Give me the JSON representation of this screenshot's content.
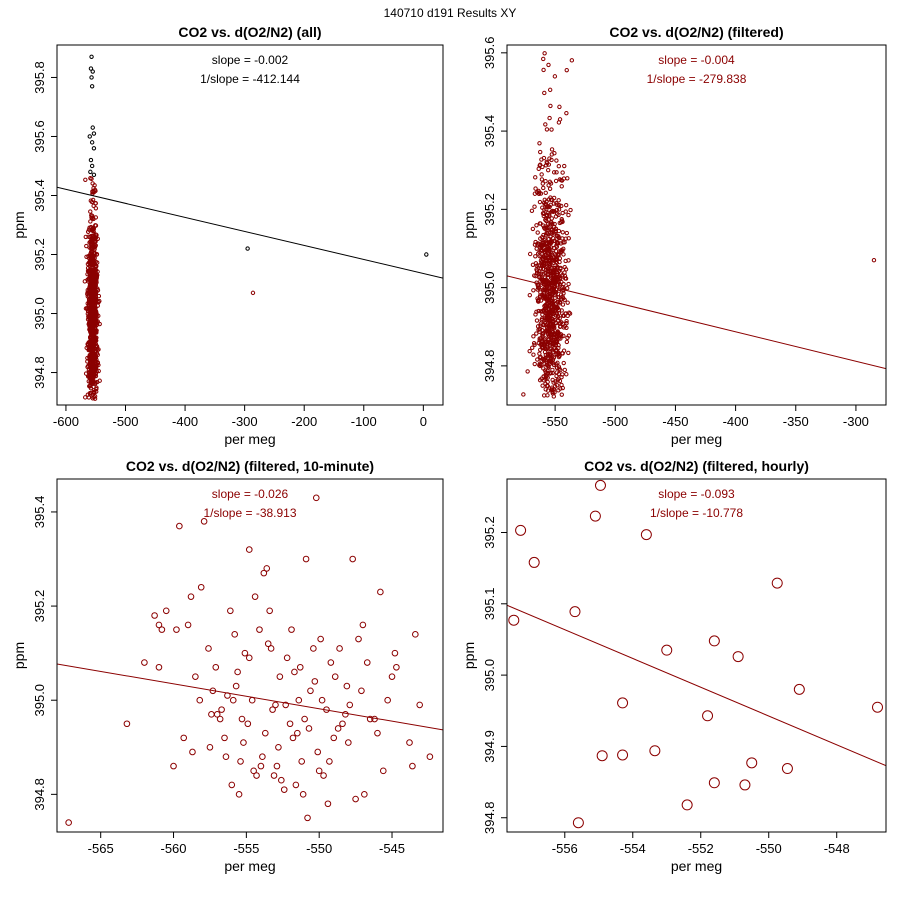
{
  "figure": {
    "suptitle": "140710   d191   Results XY"
  },
  "colors": {
    "points": "#8B0000",
    "outlier_points": "#000000",
    "fit_line_black": "#000000",
    "fit_line_red": "#8B0000",
    "frame": "#000000"
  },
  "chart_data": [
    {
      "type": "scatter",
      "title": "CO2 vs. d(O2/N2) (all)",
      "xlabel": "per meg",
      "ylabel": "ppm",
      "xlim": [
        -615,
        33
      ],
      "ylim": [
        394.69,
        395.91
      ],
      "xticks": [
        -600,
        -500,
        -400,
        -300,
        -200,
        -100,
        0
      ],
      "yticks": [
        394.8,
        395.0,
        395.2,
        395.4,
        395.6,
        395.8
      ],
      "slope_label": "slope = -0.002",
      "inv_slope_label": "1/slope = -412.144",
      "annotation_color": "#000000",
      "line_color": "#000000",
      "fit_line": {
        "x": [
          -615,
          33
        ],
        "y": [
          395.428,
          395.12
        ]
      },
      "cluster": {
        "x_center": -555,
        "x_spread": 5,
        "y_min": 394.71,
        "y_max": 395.46,
        "y_center": 395.01,
        "y_sd": 0.15,
        "count": 900
      },
      "extra_points": [
        {
          "x": -557,
          "y": 395.87,
          "color": "#000000"
        },
        {
          "x": -558,
          "y": 395.83,
          "color": "#000000"
        },
        {
          "x": -555,
          "y": 395.82,
          "color": "#000000"
        },
        {
          "x": -557,
          "y": 395.8,
          "color": "#000000"
        },
        {
          "x": -556,
          "y": 395.77,
          "color": "#000000"
        },
        {
          "x": -555,
          "y": 395.63,
          "color": "#000000"
        },
        {
          "x": -553,
          "y": 395.61,
          "color": "#000000"
        },
        {
          "x": -560,
          "y": 395.6,
          "color": "#000000"
        },
        {
          "x": -556,
          "y": 395.58,
          "color": "#000000"
        },
        {
          "x": -553,
          "y": 395.56,
          "color": "#000000"
        },
        {
          "x": -558,
          "y": 395.52,
          "color": "#000000"
        },
        {
          "x": -556,
          "y": 395.5,
          "color": "#000000"
        },
        {
          "x": -559,
          "y": 395.48,
          "color": "#000000"
        },
        {
          "x": -553,
          "y": 395.47,
          "color": "#000000"
        },
        {
          "x": -295,
          "y": 395.22,
          "color": "#000000"
        },
        {
          "x": 5,
          "y": 395.2,
          "color": "#000000"
        },
        {
          "x": -286,
          "y": 395.07,
          "color": "#8B0000"
        }
      ]
    },
    {
      "type": "scatter",
      "title": "CO2 vs. d(O2/N2) (filtered)",
      "xlabel": "per meg",
      "ylabel": "ppm",
      "xlim": [
        -590,
        -275
      ],
      "ylim": [
        394.7,
        395.62
      ],
      "xticks": [
        -550,
        -500,
        -450,
        -400,
        -350,
        -300
      ],
      "yticks": [
        394.8,
        395.0,
        395.2,
        395.4,
        395.6
      ],
      "slope_label": "slope = -0.004",
      "inv_slope_label": "1/slope = -279.838",
      "annotation_color": "#8B0000",
      "line_color": "#8B0000",
      "fit_line": {
        "x": [
          -590,
          -275
        ],
        "y": [
          395.03,
          394.793
        ]
      },
      "cluster": {
        "x_center": -554,
        "x_spread": 8,
        "y_min": 394.72,
        "y_max": 395.6,
        "y_center": 394.98,
        "y_sd": 0.16,
        "count": 900
      },
      "extra_points": [
        {
          "x": -285,
          "y": 395.07,
          "color": "#8B0000"
        }
      ]
    },
    {
      "type": "scatter",
      "title": "CO2 vs. d(O2/N2) (filtered, 10-minute)",
      "xlabel": "per meg",
      "ylabel": "ppm",
      "xlim": [
        -568,
        -541.5
      ],
      "ylim": [
        394.72,
        395.47
      ],
      "xticks": [
        -565,
        -560,
        -555,
        -550,
        -545
      ],
      "yticks": [
        394.8,
        395.0,
        395.2,
        395.4
      ],
      "slope_label": "slope = -0.026",
      "inv_slope_label": "1/slope = -38.913",
      "annotation_color": "#8B0000",
      "line_color": "#8B0000",
      "fit_line": {
        "x": [
          -568,
          -541.5
        ],
        "y": [
          395.077,
          394.937
        ]
      },
      "points": [
        [
          -567.2,
          394.74
        ],
        [
          -563.2,
          394.95
        ],
        [
          -561.3,
          395.18
        ],
        [
          -561.0,
          395.16
        ],
        [
          -560.8,
          395.15
        ],
        [
          -561.0,
          395.07
        ],
        [
          -560.5,
          395.19
        ],
        [
          -559.6,
          395.37
        ],
        [
          -559.8,
          395.15
        ],
        [
          -559.0,
          395.16
        ],
        [
          -559.3,
          394.92
        ],
        [
          -560.0,
          394.86
        ],
        [
          -558.5,
          395.05
        ],
        [
          -558.8,
          395.22
        ],
        [
          -558.1,
          395.24
        ],
        [
          -557.9,
          395.38
        ],
        [
          -557.4,
          394.97
        ],
        [
          -557.3,
          395.02
        ],
        [
          -557.5,
          394.9
        ],
        [
          -557.0,
          394.97
        ],
        [
          -556.7,
          394.98
        ],
        [
          -556.8,
          394.96
        ],
        [
          -556.5,
          394.92
        ],
        [
          -556.3,
          395.01
        ],
        [
          -555.9,
          395.0
        ],
        [
          -555.8,
          395.14
        ],
        [
          -555.7,
          395.03
        ],
        [
          -555.6,
          395.06
        ],
        [
          -555.3,
          394.96
        ],
        [
          -555.1,
          395.1
        ],
        [
          -554.8,
          395.32
        ],
        [
          -554.8,
          395.09
        ],
        [
          -554.6,
          395.0
        ],
        [
          -554.5,
          394.85
        ],
        [
          -554.3,
          394.84
        ],
        [
          -554.1,
          395.15
        ],
        [
          -553.8,
          395.27
        ],
        [
          -553.6,
          395.28
        ],
        [
          -553.4,
          395.19
        ],
        [
          -553.2,
          394.98
        ],
        [
          -553.0,
          394.99
        ],
        [
          -552.8,
          394.9
        ],
        [
          -552.6,
          394.83
        ],
        [
          -552.4,
          394.81
        ],
        [
          -551.9,
          395.15
        ],
        [
          -551.7,
          395.06
        ],
        [
          -551.4,
          395.0
        ],
        [
          -551.2,
          394.87
        ],
        [
          -551.0,
          394.96
        ],
        [
          -550.9,
          395.3
        ],
        [
          -550.4,
          395.11
        ],
        [
          -550.1,
          394.89
        ],
        [
          -550.0,
          394.85
        ],
        [
          -549.8,
          395.0
        ],
        [
          -549.5,
          394.98
        ],
        [
          -549.0,
          394.92
        ],
        [
          -548.9,
          395.05
        ],
        [
          -548.4,
          394.95
        ],
        [
          -548.0,
          394.91
        ],
        [
          -547.5,
          394.79
        ],
        [
          -547.7,
          395.3
        ],
        [
          -547.3,
          395.13
        ],
        [
          -546.9,
          394.8
        ],
        [
          -546.5,
          394.96
        ],
        [
          -546.2,
          394.96
        ],
        [
          -545.8,
          395.23
        ],
        [
          -545.6,
          394.85
        ],
        [
          -545.0,
          395.05
        ],
        [
          -544.8,
          395.1
        ],
        [
          -544.7,
          395.07
        ],
        [
          -543.8,
          394.91
        ],
        [
          -543.6,
          394.86
        ],
        [
          -543.4,
          395.14
        ],
        [
          -543.1,
          394.99
        ],
        [
          -542.4,
          394.88
        ],
        [
          -562.0,
          395.08
        ],
        [
          -558.7,
          394.89
        ],
        [
          -556.0,
          394.82
        ],
        [
          -555.5,
          394.8
        ],
        [
          -554.9,
          394.95
        ],
        [
          -553.9,
          394.88
        ],
        [
          -553.3,
          395.11
        ],
        [
          -552.9,
          394.86
        ],
        [
          -552.2,
          395.09
        ],
        [
          -551.8,
          394.92
        ],
        [
          -551.1,
          394.8
        ],
        [
          -550.6,
          395.02
        ],
        [
          -549.7,
          394.84
        ],
        [
          -549.2,
          395.08
        ],
        [
          -548.6,
          395.11
        ],
        [
          -547.9,
          394.99
        ],
        [
          -547.1,
          395.02
        ],
        [
          -546.7,
          395.08
        ],
        [
          -557.6,
          395.11
        ],
        [
          -556.1,
          395.19
        ],
        [
          -554.4,
          395.22
        ],
        [
          -553.5,
          395.12
        ],
        [
          -552.7,
          395.05
        ],
        [
          -551.5,
          394.93
        ],
        [
          -550.8,
          394.75
        ],
        [
          -550.3,
          395.04
        ],
        [
          -549.3,
          394.87
        ],
        [
          -548.2,
          394.97
        ],
        [
          -547.0,
          395.16
        ],
        [
          -546.0,
          394.93
        ],
        [
          -545.3,
          395.0
        ],
        [
          -555.2,
          394.91
        ],
        [
          -554.0,
          394.86
        ],
        [
          -552.3,
          394.99
        ],
        [
          -551.3,
          395.07
        ],
        [
          -549.9,
          395.13
        ],
        [
          -548.7,
          394.94
        ],
        [
          -550.2,
          395.43
        ],
        [
          -558.2,
          395.0
        ],
        [
          -557.1,
          395.07
        ],
        [
          -556.4,
          394.88
        ],
        [
          -555.4,
          394.87
        ],
        [
          -553.7,
          394.93
        ],
        [
          -553.1,
          394.84
        ],
        [
          -552.0,
          394.95
        ],
        [
          -551.6,
          394.82
        ],
        [
          -550.7,
          394.94
        ],
        [
          -549.4,
          394.78
        ],
        [
          -548.1,
          395.03
        ]
      ]
    },
    {
      "type": "scatter",
      "title": "CO2 vs. d(O2/N2) (filtered, hourly)",
      "xlabel": "per meg",
      "ylabel": "ppm",
      "xlim": [
        -557.7,
        -546.55
      ],
      "ylim": [
        394.78,
        395.275
      ],
      "xticks": [
        -556,
        -554,
        -552,
        -550,
        -548
      ],
      "yticks": [
        394.8,
        394.9,
        395.0,
        395.1,
        395.2
      ],
      "slope_label": "slope = -0.093",
      "inv_slope_label": "1/slope = -10.778",
      "annotation_color": "#8B0000",
      "line_color": "#8B0000",
      "fit_line": {
        "x": [
          -557.7,
          -546.55
        ],
        "y": [
          395.098,
          394.873
        ]
      },
      "points": [
        [
          -557.5,
          395.077
        ],
        [
          -557.3,
          395.203
        ],
        [
          -556.9,
          395.158
        ],
        [
          -555.7,
          395.089
        ],
        [
          -555.6,
          394.793
        ],
        [
          -555.1,
          395.223
        ],
        [
          -554.95,
          395.266
        ],
        [
          -554.9,
          394.887
        ],
        [
          -554.3,
          394.961
        ],
        [
          -554.3,
          394.888
        ],
        [
          -553.6,
          395.197
        ],
        [
          -553.35,
          394.894
        ],
        [
          -553.0,
          395.035
        ],
        [
          -552.4,
          394.818
        ],
        [
          -551.8,
          394.943
        ],
        [
          -551.6,
          395.048
        ],
        [
          -551.6,
          394.849
        ],
        [
          -550.9,
          395.026
        ],
        [
          -550.7,
          394.846
        ],
        [
          -550.5,
          394.877
        ],
        [
          -549.75,
          395.129
        ],
        [
          -549.45,
          394.869
        ],
        [
          -549.1,
          394.98
        ],
        [
          -546.8,
          394.955
        ]
      ]
    }
  ]
}
